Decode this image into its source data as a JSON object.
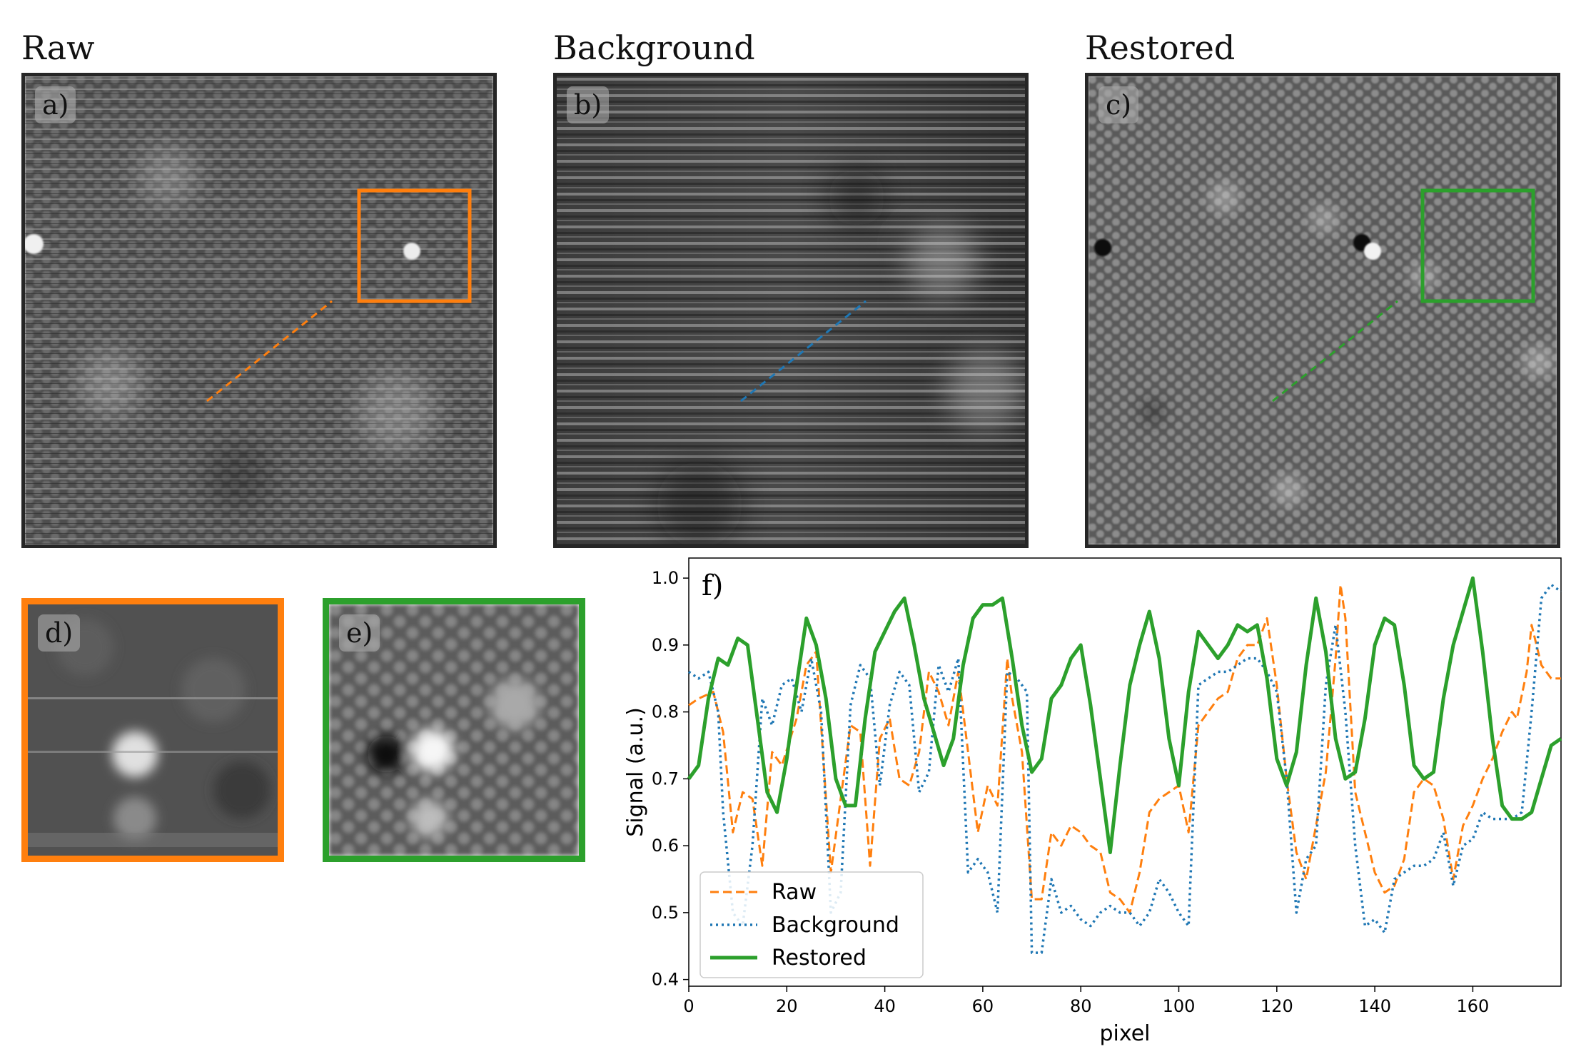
{
  "titles": {
    "raw": "Raw",
    "background": "Background",
    "restored": "Restored"
  },
  "panels": {
    "a": "a)",
    "b": "b)",
    "c": "c)",
    "d": "d)",
    "e": "e)",
    "f": "f)"
  },
  "colors": {
    "raw": "#ff7f0e",
    "background": "#1f77b4",
    "restored": "#2ca02c",
    "frame": "#262626"
  },
  "chart_data": {
    "type": "line",
    "panel_label": "f)",
    "xlabel": "pixel",
    "ylabel": "Signal (a.u.)",
    "xlim": [
      0,
      178
    ],
    "ylim": [
      0.39,
      1.03
    ],
    "xticks": [
      0,
      20,
      40,
      60,
      80,
      100,
      120,
      140,
      160
    ],
    "yticks": [
      0.4,
      0.5,
      0.6,
      0.7,
      0.8,
      0.9,
      1.0
    ],
    "legend_position": "lower-left",
    "series": [
      {
        "name": "Raw",
        "style": "dashed",
        "color": "#ff7f0e",
        "points": [
          [
            0,
            0.81
          ],
          [
            2,
            0.82
          ],
          [
            5,
            0.83
          ],
          [
            7,
            0.77
          ],
          [
            9,
            0.62
          ],
          [
            11,
            0.68
          ],
          [
            13,
            0.67
          ],
          [
            15,
            0.57
          ],
          [
            17,
            0.74
          ],
          [
            19,
            0.72
          ],
          [
            22,
            0.79
          ],
          [
            24,
            0.87
          ],
          [
            26,
            0.89
          ],
          [
            27,
            0.78
          ],
          [
            29,
            0.56
          ],
          [
            31,
            0.67
          ],
          [
            33,
            0.78
          ],
          [
            35,
            0.77
          ],
          [
            37,
            0.57
          ],
          [
            39,
            0.76
          ],
          [
            41,
            0.79
          ],
          [
            43,
            0.7
          ],
          [
            45,
            0.69
          ],
          [
            47,
            0.74
          ],
          [
            49,
            0.86
          ],
          [
            51,
            0.83
          ],
          [
            53,
            0.78
          ],
          [
            55,
            0.86
          ],
          [
            57,
            0.74
          ],
          [
            59,
            0.62
          ],
          [
            61,
            0.69
          ],
          [
            63,
            0.66
          ],
          [
            65,
            0.88
          ],
          [
            66,
            0.82
          ],
          [
            68,
            0.74
          ],
          [
            70,
            0.52
          ],
          [
            72,
            0.52
          ],
          [
            74,
            0.62
          ],
          [
            76,
            0.6
          ],
          [
            78,
            0.63
          ],
          [
            80,
            0.62
          ],
          [
            82,
            0.6
          ],
          [
            84,
            0.59
          ],
          [
            86,
            0.53
          ],
          [
            88,
            0.52
          ],
          [
            90,
            0.5
          ],
          [
            92,
            0.56
          ],
          [
            94,
            0.65
          ],
          [
            96,
            0.67
          ],
          [
            98,
            0.68
          ],
          [
            100,
            0.69
          ],
          [
            102,
            0.62
          ],
          [
            104,
            0.78
          ],
          [
            106,
            0.8
          ],
          [
            108,
            0.82
          ],
          [
            110,
            0.83
          ],
          [
            112,
            0.88
          ],
          [
            114,
            0.9
          ],
          [
            116,
            0.9
          ],
          [
            118,
            0.94
          ],
          [
            120,
            0.84
          ],
          [
            122,
            0.7
          ],
          [
            124,
            0.59
          ],
          [
            126,
            0.55
          ],
          [
            128,
            0.63
          ],
          [
            130,
            0.71
          ],
          [
            132,
            0.88
          ],
          [
            133,
            0.99
          ],
          [
            134,
            0.94
          ],
          [
            136,
            0.68
          ],
          [
            138,
            0.62
          ],
          [
            140,
            0.56
          ],
          [
            142,
            0.53
          ],
          [
            144,
            0.54
          ],
          [
            146,
            0.58
          ],
          [
            148,
            0.68
          ],
          [
            150,
            0.7
          ],
          [
            152,
            0.69
          ],
          [
            154,
            0.64
          ],
          [
            156,
            0.55
          ],
          [
            158,
            0.63
          ],
          [
            160,
            0.66
          ],
          [
            162,
            0.7
          ],
          [
            164,
            0.73
          ],
          [
            166,
            0.77
          ],
          [
            168,
            0.8
          ],
          [
            169,
            0.79
          ],
          [
            171,
            0.86
          ],
          [
            172,
            0.93
          ],
          [
            174,
            0.87
          ],
          [
            176,
            0.85
          ],
          [
            178,
            0.85
          ]
        ]
      },
      {
        "name": "Background",
        "style": "dotted",
        "color": "#1f77b4",
        "points": [
          [
            0,
            0.86
          ],
          [
            2,
            0.85
          ],
          [
            4,
            0.86
          ],
          [
            6,
            0.8
          ],
          [
            7,
            0.65
          ],
          [
            9,
            0.5
          ],
          [
            11,
            0.48
          ],
          [
            13,
            0.6
          ],
          [
            15,
            0.82
          ],
          [
            17,
            0.78
          ],
          [
            19,
            0.84
          ],
          [
            21,
            0.85
          ],
          [
            23,
            0.8
          ],
          [
            25,
            0.88
          ],
          [
            27,
            0.8
          ],
          [
            29,
            0.5
          ],
          [
            31,
            0.53
          ],
          [
            33,
            0.81
          ],
          [
            35,
            0.87
          ],
          [
            37,
            0.85
          ],
          [
            39,
            0.69
          ],
          [
            41,
            0.81
          ],
          [
            43,
            0.86
          ],
          [
            45,
            0.84
          ],
          [
            47,
            0.68
          ],
          [
            49,
            0.71
          ],
          [
            51,
            0.87
          ],
          [
            53,
            0.83
          ],
          [
            55,
            0.88
          ],
          [
            57,
            0.56
          ],
          [
            59,
            0.58
          ],
          [
            61,
            0.56
          ],
          [
            63,
            0.5
          ],
          [
            65,
            0.86
          ],
          [
            67,
            0.85
          ],
          [
            69,
            0.83
          ],
          [
            70,
            0.44
          ],
          [
            72,
            0.44
          ],
          [
            74,
            0.55
          ],
          [
            76,
            0.5
          ],
          [
            78,
            0.51
          ],
          [
            80,
            0.49
          ],
          [
            82,
            0.48
          ],
          [
            84,
            0.5
          ],
          [
            86,
            0.51
          ],
          [
            88,
            0.5
          ],
          [
            90,
            0.5
          ],
          [
            92,
            0.48
          ],
          [
            94,
            0.5
          ],
          [
            96,
            0.55
          ],
          [
            98,
            0.53
          ],
          [
            100,
            0.5
          ],
          [
            102,
            0.48
          ],
          [
            104,
            0.84
          ],
          [
            106,
            0.85
          ],
          [
            108,
            0.86
          ],
          [
            110,
            0.86
          ],
          [
            112,
            0.87
          ],
          [
            114,
            0.88
          ],
          [
            116,
            0.88
          ],
          [
            118,
            0.86
          ],
          [
            120,
            0.83
          ],
          [
            122,
            0.7
          ],
          [
            124,
            0.5
          ],
          [
            126,
            0.58
          ],
          [
            128,
            0.6
          ],
          [
            130,
            0.84
          ],
          [
            132,
            0.93
          ],
          [
            134,
            0.8
          ],
          [
            136,
            0.6
          ],
          [
            138,
            0.48
          ],
          [
            140,
            0.49
          ],
          [
            142,
            0.47
          ],
          [
            144,
            0.55
          ],
          [
            146,
            0.56
          ],
          [
            148,
            0.57
          ],
          [
            150,
            0.57
          ],
          [
            152,
            0.58
          ],
          [
            154,
            0.62
          ],
          [
            156,
            0.54
          ],
          [
            158,
            0.6
          ],
          [
            160,
            0.61
          ],
          [
            162,
            0.65
          ],
          [
            164,
            0.64
          ],
          [
            166,
            0.64
          ],
          [
            168,
            0.64
          ],
          [
            170,
            0.65
          ],
          [
            172,
            0.8
          ],
          [
            174,
            0.97
          ],
          [
            176,
            0.99
          ],
          [
            178,
            0.98
          ]
        ]
      },
      {
        "name": "Restored",
        "style": "solid",
        "color": "#2ca02c",
        "points": [
          [
            0,
            0.7
          ],
          [
            2,
            0.72
          ],
          [
            4,
            0.82
          ],
          [
            6,
            0.88
          ],
          [
            8,
            0.87
          ],
          [
            10,
            0.91
          ],
          [
            12,
            0.9
          ],
          [
            14,
            0.79
          ],
          [
            16,
            0.68
          ],
          [
            18,
            0.65
          ],
          [
            20,
            0.73
          ],
          [
            22,
            0.84
          ],
          [
            24,
            0.94
          ],
          [
            26,
            0.9
          ],
          [
            28,
            0.82
          ],
          [
            30,
            0.7
          ],
          [
            32,
            0.66
          ],
          [
            34,
            0.66
          ],
          [
            36,
            0.79
          ],
          [
            38,
            0.89
          ],
          [
            40,
            0.92
          ],
          [
            42,
            0.95
          ],
          [
            44,
            0.97
          ],
          [
            46,
            0.9
          ],
          [
            48,
            0.82
          ],
          [
            50,
            0.77
          ],
          [
            52,
            0.72
          ],
          [
            54,
            0.76
          ],
          [
            56,
            0.87
          ],
          [
            58,
            0.94
          ],
          [
            60,
            0.96
          ],
          [
            62,
            0.96
          ],
          [
            64,
            0.97
          ],
          [
            66,
            0.88
          ],
          [
            68,
            0.78
          ],
          [
            70,
            0.71
          ],
          [
            72,
            0.73
          ],
          [
            74,
            0.82
          ],
          [
            76,
            0.84
          ],
          [
            78,
            0.88
          ],
          [
            80,
            0.9
          ],
          [
            82,
            0.81
          ],
          [
            84,
            0.7
          ],
          [
            86,
            0.59
          ],
          [
            88,
            0.72
          ],
          [
            90,
            0.84
          ],
          [
            92,
            0.9
          ],
          [
            94,
            0.95
          ],
          [
            96,
            0.88
          ],
          [
            98,
            0.76
          ],
          [
            100,
            0.69
          ],
          [
            102,
            0.83
          ],
          [
            104,
            0.92
          ],
          [
            106,
            0.9
          ],
          [
            108,
            0.88
          ],
          [
            110,
            0.9
          ],
          [
            112,
            0.93
          ],
          [
            114,
            0.92
          ],
          [
            116,
            0.93
          ],
          [
            118,
            0.85
          ],
          [
            120,
            0.73
          ],
          [
            122,
            0.69
          ],
          [
            124,
            0.74
          ],
          [
            126,
            0.87
          ],
          [
            128,
            0.97
          ],
          [
            130,
            0.89
          ],
          [
            132,
            0.76
          ],
          [
            134,
            0.7
          ],
          [
            136,
            0.71
          ],
          [
            138,
            0.79
          ],
          [
            140,
            0.9
          ],
          [
            142,
            0.94
          ],
          [
            144,
            0.93
          ],
          [
            146,
            0.84
          ],
          [
            148,
            0.72
          ],
          [
            150,
            0.7
          ],
          [
            152,
            0.71
          ],
          [
            154,
            0.82
          ],
          [
            156,
            0.9
          ],
          [
            158,
            0.95
          ],
          [
            160,
            1.0
          ],
          [
            162,
            0.89
          ],
          [
            164,
            0.76
          ],
          [
            166,
            0.66
          ],
          [
            168,
            0.64
          ],
          [
            170,
            0.64
          ],
          [
            172,
            0.65
          ],
          [
            174,
            0.7
          ],
          [
            176,
            0.75
          ],
          [
            178,
            0.76
          ]
        ]
      }
    ]
  }
}
